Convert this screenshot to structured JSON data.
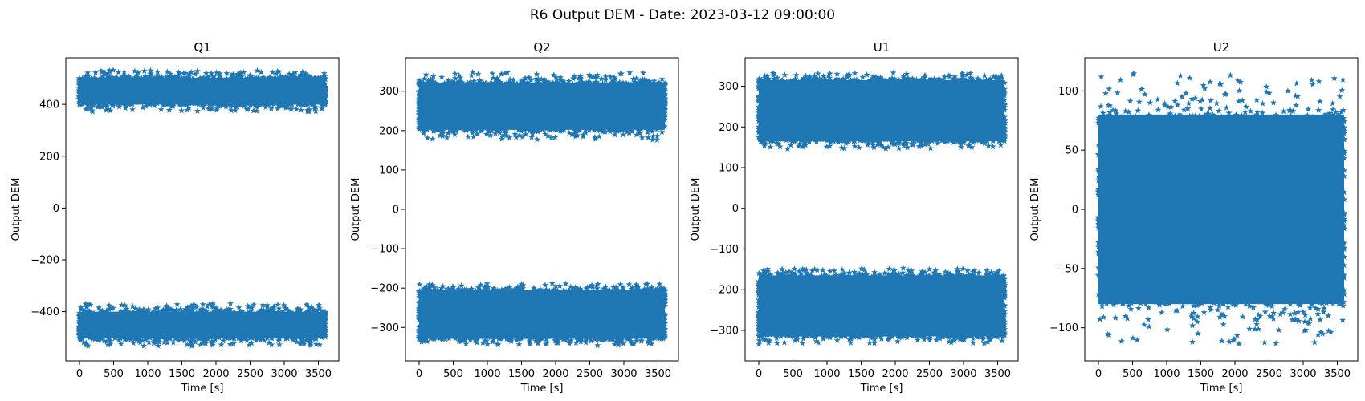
{
  "figure": {
    "suptitle": "R6 Output DEM - Date: 2023-03-12 09:00:00"
  },
  "colors": {
    "series": "#1f77b4"
  },
  "chart_data": [
    {
      "type": "scatter",
      "marker": "star",
      "title": "Q1",
      "xlabel": "Time [s]",
      "ylabel": "Output DEM",
      "xlim": [
        -200,
        3800
      ],
      "ylim": [
        -590,
        580
      ],
      "xticks": [
        0,
        500,
        1000,
        1500,
        2000,
        2500,
        3000,
        3500
      ],
      "xtick_labels": [
        "0",
        "500",
        "1000",
        "1500",
        "2000",
        "2500",
        "3000",
        "3500"
      ],
      "yticks": [
        -400,
        -200,
        0,
        200,
        400
      ],
      "ytick_labels": [
        "−400",
        "−200",
        "0",
        "200",
        "400"
      ],
      "grid": false,
      "x_range": [
        0,
        3600
      ],
      "bands": [
        {
          "center": 451,
          "half_width": 52,
          "outlier_extent": 82
        },
        {
          "center": -452,
          "half_width": 52,
          "outlier_extent": 84
        }
      ]
    },
    {
      "type": "scatter",
      "marker": "star",
      "title": "Q2",
      "xlabel": "Time [s]",
      "ylabel": "Output DEM",
      "xlim": [
        -200,
        3800
      ],
      "ylim": [
        -385,
        385
      ],
      "xticks": [
        0,
        500,
        1000,
        1500,
        2000,
        2500,
        3000,
        3500
      ],
      "xtick_labels": [
        "0",
        "500",
        "1000",
        "1500",
        "2000",
        "2500",
        "3000",
        "3500"
      ],
      "yticks": [
        -300,
        -200,
        -100,
        0,
        100,
        200,
        300
      ],
      "ytick_labels": [
        "−300",
        "−200",
        "−100",
        "0",
        "100",
        "200",
        "300"
      ],
      "grid": false,
      "x_range": [
        0,
        3600
      ],
      "bands": [
        {
          "center": 262,
          "half_width": 60,
          "outlier_extent": 88
        },
        {
          "center": -267,
          "half_width": 62,
          "outlier_extent": 80
        }
      ]
    },
    {
      "type": "scatter",
      "marker": "star",
      "title": "U1",
      "xlabel": "Time [s]",
      "ylabel": "Output DEM",
      "xlim": [
        -200,
        3800
      ],
      "ylim": [
        -375,
        370
      ],
      "xticks": [
        0,
        500,
        1000,
        1500,
        2000,
        2500,
        3000,
        3500
      ],
      "xtick_labels": [
        "0",
        "500",
        "1000",
        "1500",
        "2000",
        "2500",
        "3000",
        "3500"
      ],
      "yticks": [
        -300,
        -200,
        -100,
        0,
        100,
        200,
        300
      ],
      "ytick_labels": [
        "−300",
        "−200",
        "−100",
        "0",
        "100",
        "200",
        "300"
      ],
      "grid": false,
      "x_range": [
        0,
        3600
      ],
      "bands": [
        {
          "center": 240,
          "half_width": 75,
          "outlier_extent": 95
        },
        {
          "center": -240,
          "half_width": 75,
          "outlier_extent": 95
        }
      ]
    },
    {
      "type": "scatter",
      "marker": "star",
      "title": "U2",
      "xlabel": "Time [s]",
      "ylabel": "Output DEM",
      "xlim": [
        -200,
        3800
      ],
      "ylim": [
        -128,
        128
      ],
      "xticks": [
        0,
        500,
        1000,
        1500,
        2000,
        2500,
        3000,
        3500
      ],
      "xtick_labels": [
        "0",
        "500",
        "1000",
        "1500",
        "2000",
        "2500",
        "3000",
        "3500"
      ],
      "yticks": [
        -100,
        -50,
        0,
        50,
        100
      ],
      "ytick_labels": [
        "−100",
        "−50",
        "0",
        "50",
        "100"
      ],
      "grid": false,
      "x_range": [
        0,
        3600
      ],
      "bands": [
        {
          "center": 0,
          "half_width": 80,
          "outlier_extent": 118
        }
      ]
    }
  ]
}
